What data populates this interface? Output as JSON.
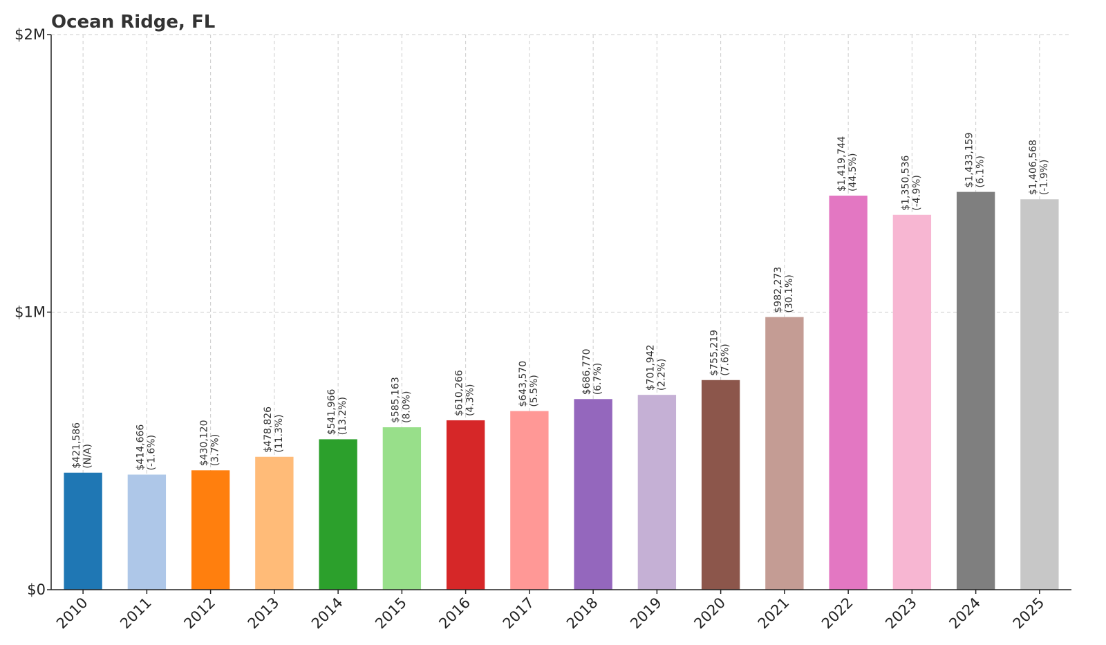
{
  "chart_data": {
    "type": "bar",
    "title": "Ocean Ridge, FL",
    "xlabel": "",
    "ylabel": "",
    "ylim": [
      0,
      2000000
    ],
    "yticks": [
      {
        "value": 0,
        "label": "$0"
      },
      {
        "value": 1000000,
        "label": "$1M"
      },
      {
        "value": 2000000,
        "label": "$2M"
      }
    ],
    "grid": true,
    "categories": [
      "2010",
      "2011",
      "2012",
      "2013",
      "2014",
      "2015",
      "2016",
      "2017",
      "2018",
      "2019",
      "2020",
      "2021",
      "2022",
      "2023",
      "2024",
      "2025"
    ],
    "values": [
      421586,
      414666,
      430120,
      478826,
      541966,
      585163,
      610266,
      643570,
      686770,
      701942,
      755219,
      982273,
      1419744,
      1350536,
      1433159,
      1406568
    ],
    "value_labels": [
      "$421,586",
      "$414,666",
      "$430,120",
      "$478,826",
      "$541,966",
      "$585,163",
      "$610,266",
      "$643,570",
      "$686,770",
      "$701,942",
      "$755,219",
      "$982,273",
      "$1,419,744",
      "$1,350,536",
      "$1,433,159",
      "$1,406,568"
    ],
    "change_labels": [
      "(N/A)",
      "(-1.6%)",
      "(3.7%)",
      "(11.3%)",
      "(13.2%)",
      "(8.0%)",
      "(4.3%)",
      "(5.5%)",
      "(6.7%)",
      "(2.2%)",
      "(7.6%)",
      "(30.1%)",
      "(44.5%)",
      "(-4.9%)",
      "(6.1%)",
      "(-1.9%)"
    ],
    "colors": [
      "#1f77b4",
      "#aec7e8",
      "#ff7f0e",
      "#ffbb78",
      "#2ca02c",
      "#98df8a",
      "#d62728",
      "#ff9896",
      "#9467bd",
      "#c5b0d5",
      "#8c564b",
      "#c49c94",
      "#e377c2",
      "#f7b6d2",
      "#7f7f7f",
      "#c7c7c7"
    ]
  }
}
